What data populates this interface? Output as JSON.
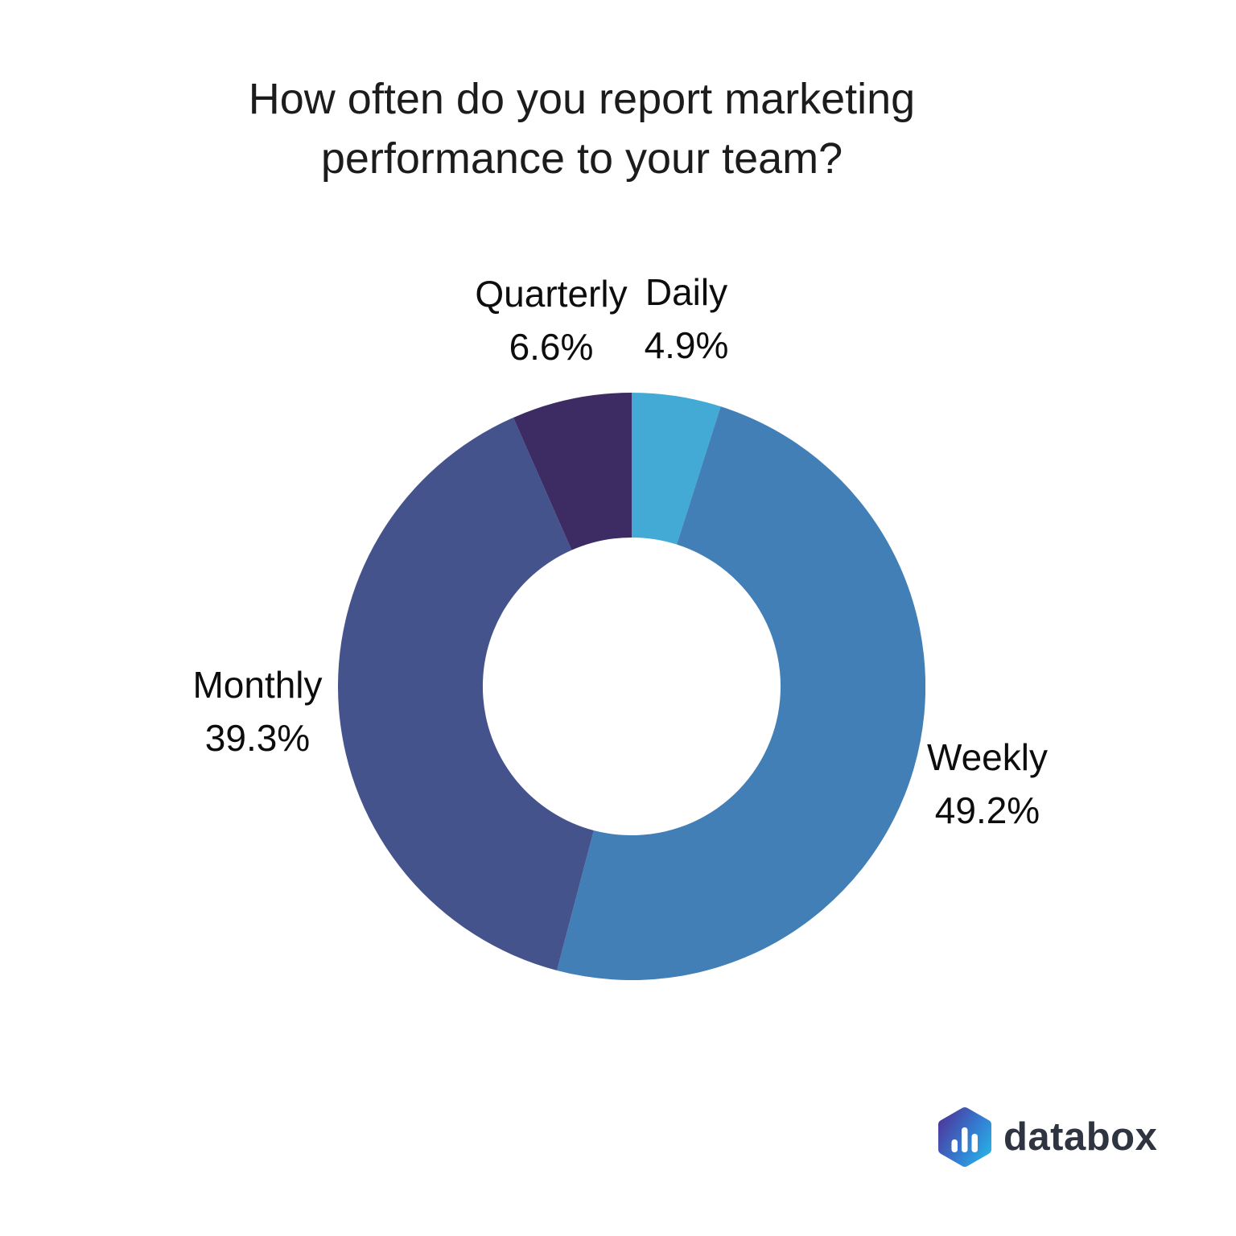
{
  "title": "How often do you report marketing performance to your team?",
  "brand": {
    "name": "databox",
    "logo_icon": "bar-chart-hexagon-icon",
    "text_color": "#2e3540",
    "gradient_start": "#4a3fa0",
    "gradient_mid": "#3579cf",
    "gradient_end": "#2aa9e2"
  },
  "chart_data": {
    "type": "pie",
    "subtype": "donut",
    "title": "How often do you report marketing performance to your team?",
    "start_angle_deg": 0,
    "direction": "clockwise",
    "inner_radius_ratio": 0.507,
    "legend_position": "labels-around-chart",
    "background": "#ffffff",
    "slices": [
      {
        "label": "Daily",
        "value": 4.9,
        "pct_label": "4.9%",
        "color": "#43a9d5"
      },
      {
        "label": "Weekly",
        "value": 49.2,
        "pct_label": "49.2%",
        "color": "#417fb6"
      },
      {
        "label": "Monthly",
        "value": 39.3,
        "pct_label": "39.3%",
        "color": "#45538d"
      },
      {
        "label": "Quarterly",
        "value": 6.6,
        "pct_label": "6.6%",
        "color": "#3d2c64"
      }
    ]
  }
}
